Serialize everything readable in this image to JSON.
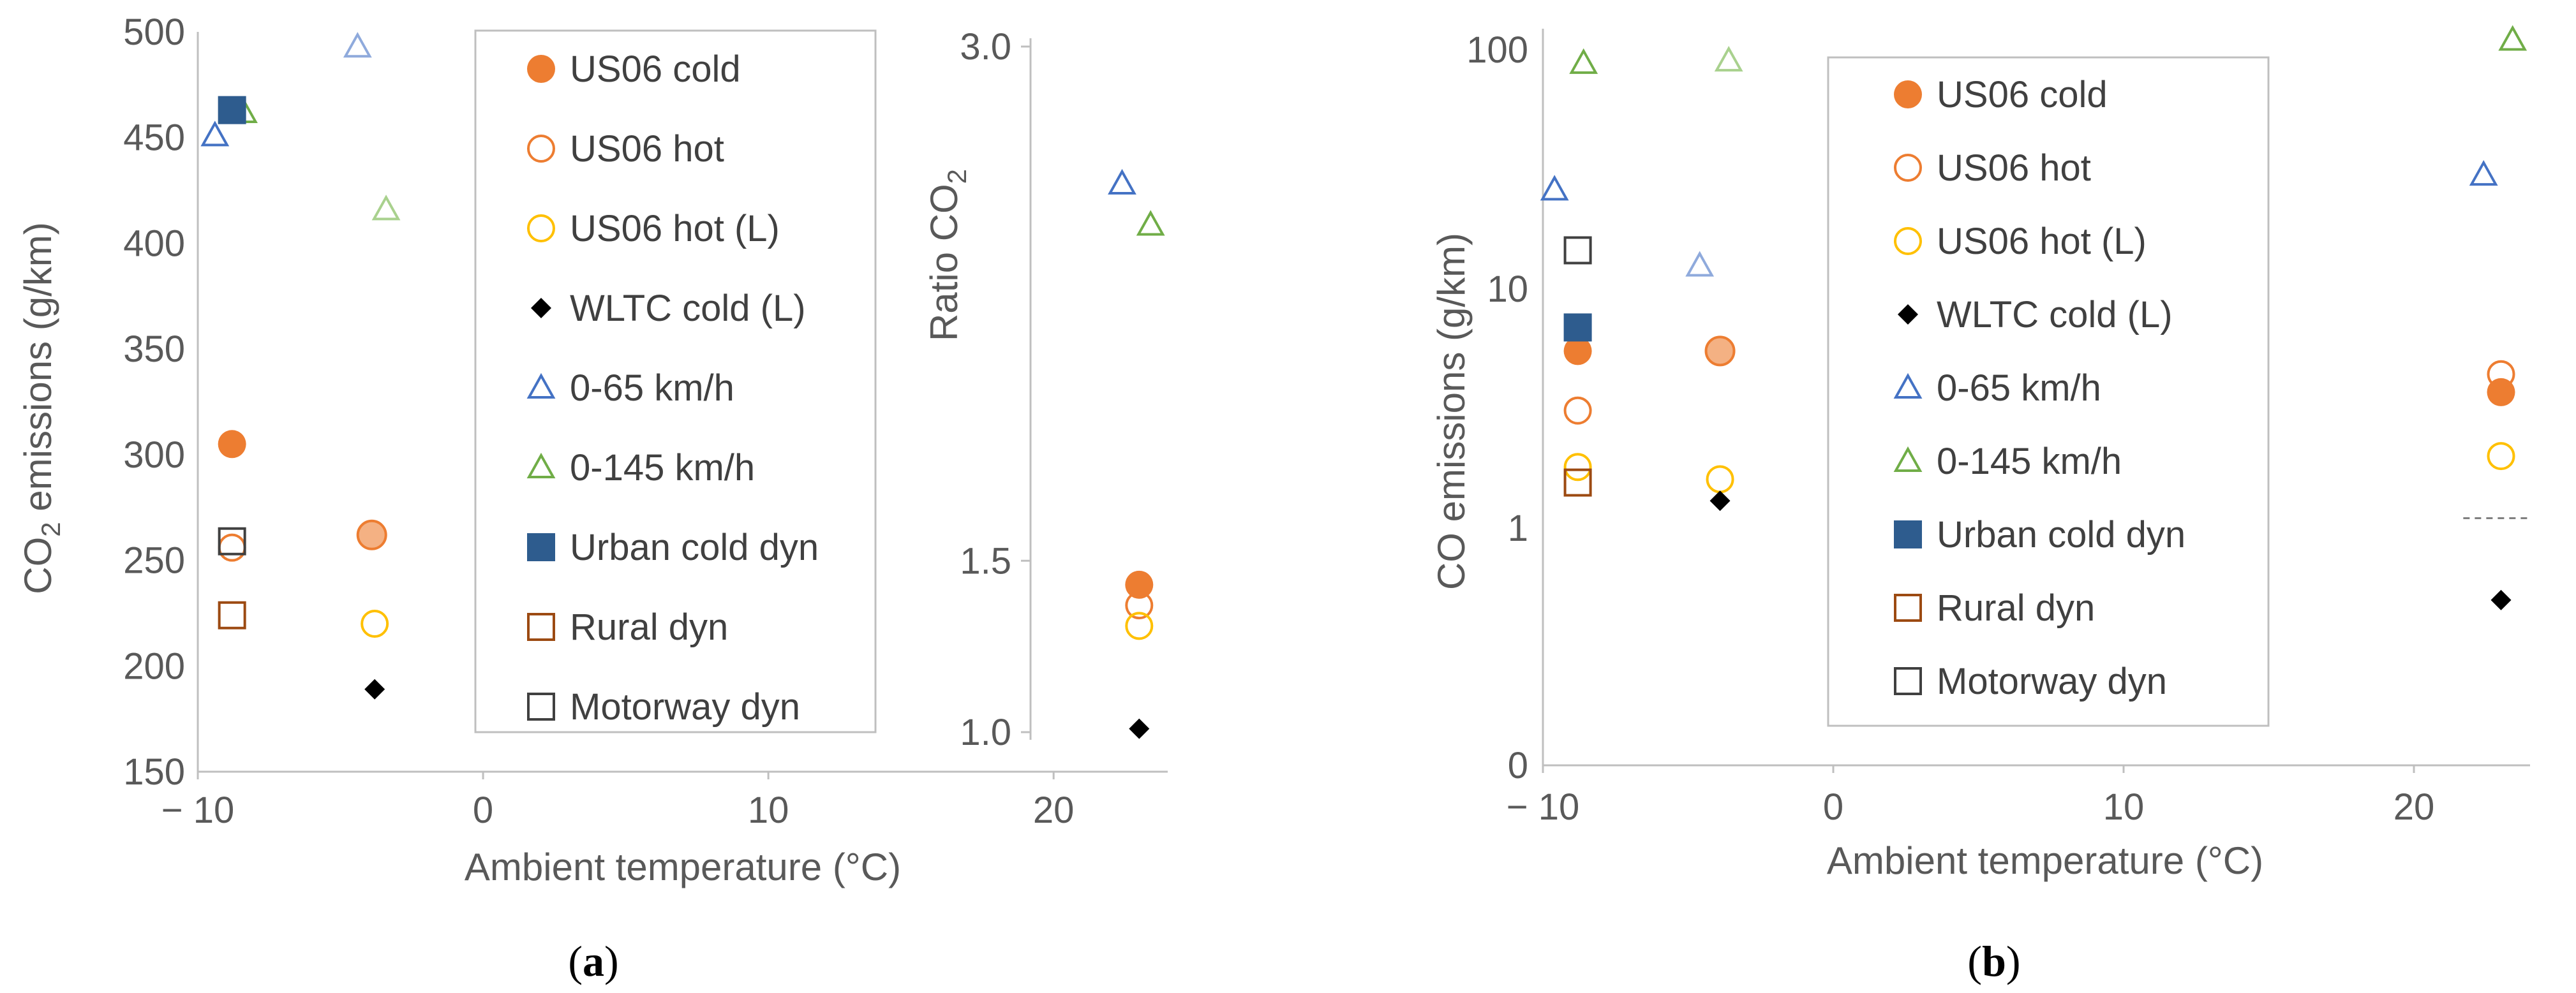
{
  "colors": {
    "orange": "#ED7D31",
    "orange_light": "#F4B183",
    "yellow": "#FFC000",
    "blue": "#4472C4",
    "blue_light": "#8FAADC",
    "green": "#70AD47",
    "green_light": "#A9D18E",
    "navy": "#2E5C8E",
    "brown": "#9C4A12",
    "gray": "#404040",
    "black": "#000000",
    "axis": "#BFBFBF",
    "text": "#595959"
  },
  "legend_entries": [
    {
      "label": "US06 cold",
      "marker": "circle-filled",
      "color_key": "orange"
    },
    {
      "label": "US06 hot",
      "marker": "circle-open",
      "color_key": "orange"
    },
    {
      "label": "US06 hot (L)",
      "marker": "circle-open",
      "color_key": "yellow"
    },
    {
      "label": "WLTC cold (L)",
      "marker": "diamond-filled",
      "color_key": "black"
    },
    {
      "label": "0-65 km/h",
      "marker": "triangle-open",
      "color_key": "blue"
    },
    {
      "label": "0-145 km/h",
      "marker": "triangle-open",
      "color_key": "green"
    },
    {
      "label": "Urban cold dyn",
      "marker": "square-filled",
      "color_key": "navy"
    },
    {
      "label": "Rural dyn",
      "marker": "square-open",
      "color_key": "brown"
    },
    {
      "label": "Motorway dyn",
      "marker": "square-open",
      "color_key": "gray"
    }
  ],
  "panel_labels": {
    "a": {
      "open": "(",
      "letter": "a",
      "close": ")"
    },
    "b": {
      "open": "(",
      "letter": "b",
      "close": ")"
    }
  },
  "chart_data": [
    {
      "id": "a",
      "type": "scatter",
      "title": "",
      "xlabel": "Ambient temperature (°C)",
      "ylabel_main": "CO",
      "ylabel_sub": "2",
      "ylabel_tail": " emissions (g/km)",
      "xlim": [
        -10,
        24
      ],
      "xticks": [
        -10,
        0,
        10,
        20
      ],
      "xtick_labels": [
        "− 10",
        "0",
        "10",
        "20"
      ],
      "ylim": [
        150,
        500
      ],
      "yticks": [
        150,
        200,
        250,
        300,
        350,
        400,
        450,
        500
      ],
      "ytick_labels": [
        "150",
        "200",
        "250",
        "300",
        "350",
        "400",
        "450",
        "500"
      ],
      "y2label_main": "Ratio CO",
      "y2label_sub": "2",
      "y2ticks": [
        1.0,
        1.5,
        3.0
      ],
      "y2tick_labels": [
        "1.0",
        "1.5",
        "3.0"
      ],
      "points_left": [
        {
          "series": "US06 cold",
          "x": -8.8,
          "y": 305
        },
        {
          "series": "US06 cold",
          "x": -3.9,
          "y": 262,
          "light": true
        },
        {
          "series": "US06 hot",
          "x": -8.8,
          "y": 256
        },
        {
          "series": "US06 hot (L)",
          "x": -3.8,
          "y": 220
        },
        {
          "series": "WLTC cold (L)",
          "x": -3.8,
          "y": 189
        },
        {
          "series": "0-65 km/h",
          "x": -9.4,
          "y": 451
        },
        {
          "series": "0-65 km/h",
          "x": -4.4,
          "y": 493,
          "light": true
        },
        {
          "series": "0-145 km/h",
          "x": -8.4,
          "y": 462
        },
        {
          "series": "0-145 km/h",
          "x": -3.4,
          "y": 416,
          "light": true
        },
        {
          "series": "Urban cold dyn",
          "x": -8.8,
          "y": 463
        },
        {
          "series": "Rural dyn",
          "x": -8.8,
          "y": 224
        },
        {
          "series": "Motorway dyn",
          "x": -8.8,
          "y": 259
        }
      ],
      "points_ratio": [
        {
          "series": "US06 cold",
          "x": 23.0,
          "y": 1.43
        },
        {
          "series": "US06 hot",
          "x": 23.0,
          "y": 1.37
        },
        {
          "series": "US06 hot (L)",
          "x": 23.0,
          "y": 1.31
        },
        {
          "series": "WLTC cold (L)",
          "x": 23.0,
          "y": 1.01
        },
        {
          "series": "0-65 km/h",
          "x": 22.4,
          "y": 2.6
        },
        {
          "series": "0-145 km/h",
          "x": 23.4,
          "y": 2.48
        }
      ]
    },
    {
      "id": "b",
      "type": "scatter",
      "yscale": "log",
      "title": "",
      "xlabel": "Ambient temperature (°C)",
      "ylabel": "CO emissions (g/km)",
      "xlim": [
        -10,
        24
      ],
      "xticks": [
        -10,
        0,
        10,
        20
      ],
      "xtick_labels": [
        "− 10",
        "0",
        "10",
        "20"
      ],
      "yticks": [
        0,
        1,
        10,
        100
      ],
      "ytick_labels": [
        "0",
        "1",
        "10",
        "100"
      ],
      "dashed_reference": {
        "x_from": 21.7,
        "x_to": 24,
        "y": 1.1
      },
      "points": [
        {
          "series": "US06 cold",
          "x": -8.8,
          "y": 5.5
        },
        {
          "series": "US06 cold",
          "x": -3.9,
          "y": 5.5,
          "light": true
        },
        {
          "series": "US06 cold",
          "x": 23.0,
          "y": 3.7
        },
        {
          "series": "US06 hot",
          "x": -8.8,
          "y": 3.1
        },
        {
          "series": "US06 hot",
          "x": 23.0,
          "y": 4.4
        },
        {
          "series": "US06 hot (L)",
          "x": -8.8,
          "y": 1.8
        },
        {
          "series": "US06 hot (L)",
          "x": -3.9,
          "y": 1.6
        },
        {
          "series": "US06 hot (L)",
          "x": 23.0,
          "y": 2.0
        },
        {
          "series": "WLTC cold (L)",
          "x": -3.9,
          "y": 1.3
        },
        {
          "series": "WLTC cold (L)",
          "x": 23.0,
          "y": 0.5
        },
        {
          "series": "0-65 km/h",
          "x": -9.6,
          "y": 26
        },
        {
          "series": "0-65 km/h",
          "x": -4.6,
          "y": 12.5,
          "light": true
        },
        {
          "series": "0-65 km/h",
          "x": 22.4,
          "y": 30
        },
        {
          "series": "0-145 km/h",
          "x": -8.6,
          "y": 88
        },
        {
          "series": "0-145 km/h",
          "x": -3.6,
          "y": 90,
          "light": true
        },
        {
          "series": "0-145 km/h",
          "x": 23.4,
          "y": 110
        },
        {
          "series": "Urban cold dyn",
          "x": -8.8,
          "y": 6.9
        },
        {
          "series": "Rural dyn",
          "x": -8.8,
          "y": 1.55
        },
        {
          "series": "Motorway dyn",
          "x": -8.8,
          "y": 14.5
        }
      ]
    }
  ]
}
